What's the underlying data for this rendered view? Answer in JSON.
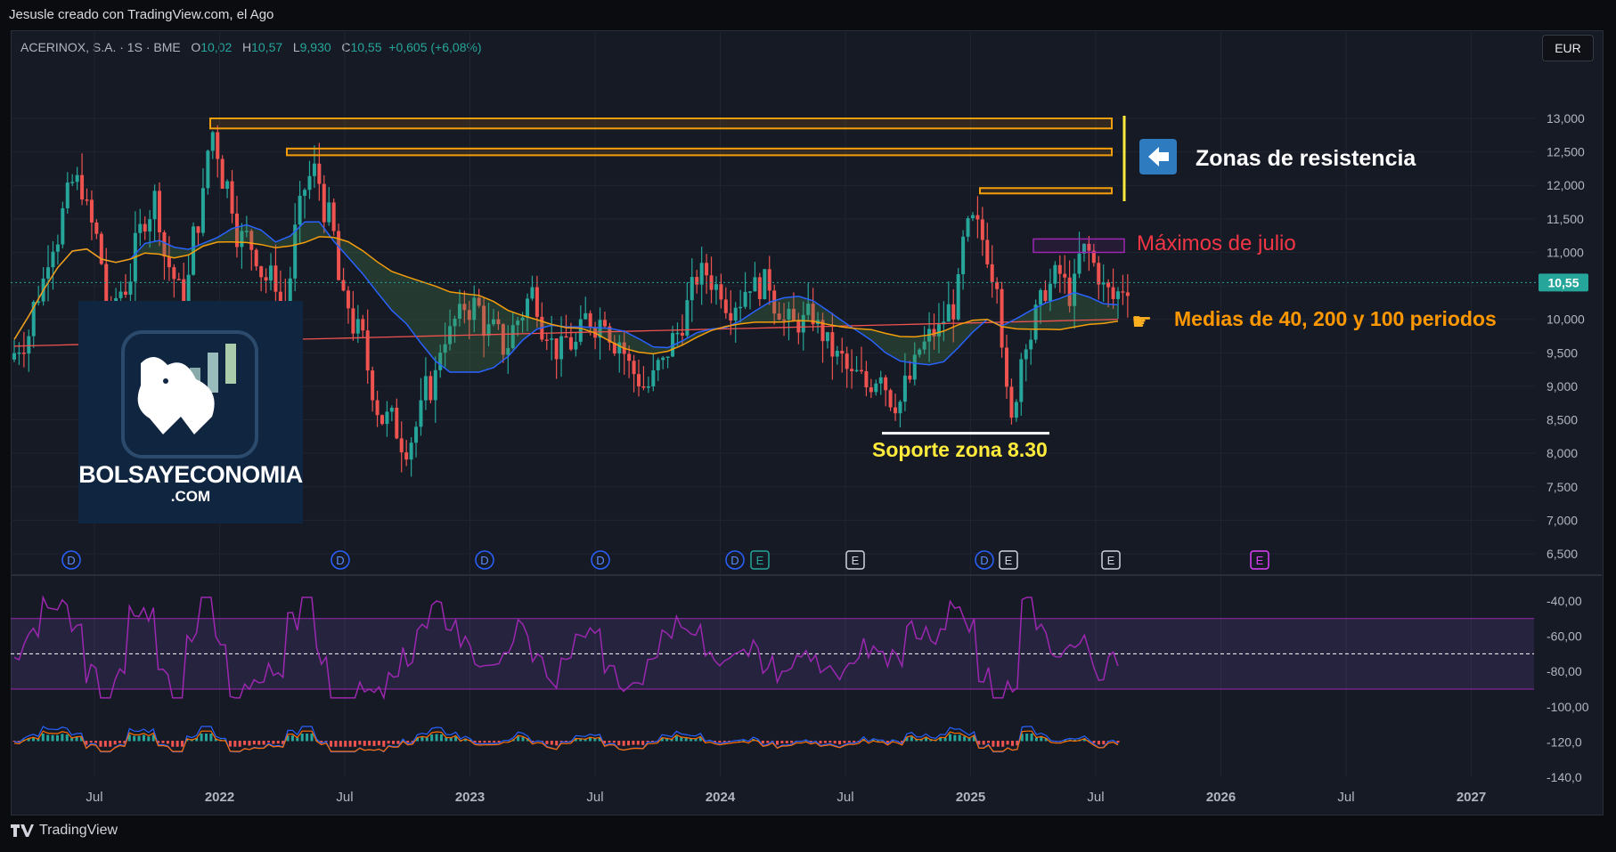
{
  "header": {
    "attribution": "Jesusle creado con TradingView.com, el Ago"
  },
  "legend": {
    "symbol": "ACERINOX, S.A. · 1S · BME",
    "o_label": "O",
    "o": "10,02",
    "h_label": "H",
    "h": "10,57",
    "l_label": "L",
    "l": "9,930",
    "c_label": "C",
    "c": "10,55",
    "change": "+0,605 (+6,08%)"
  },
  "currency_button": "EUR",
  "price_tag": "10,55",
  "footer": {
    "brand": "TradingView"
  },
  "logo": {
    "line1": "BOLSAYECONOMIA",
    "line2": ".COM"
  },
  "annotations": {
    "resistance": "Zonas de resistencia",
    "july_highs": "Máximos de julio",
    "averages": "Medias de 40, 200 y 100 periodos",
    "support": "Soporte zona 8.30"
  },
  "colors": {
    "up": "#26a69a",
    "down": "#ef5350",
    "rsi": "#9c27b0",
    "ma40": "#2962ff",
    "ma100": "#f59e0b",
    "ma200": "#ef5350",
    "resistance": "#f59e0b",
    "support": "#ffffff",
    "annotation_red": "#f23645",
    "annotation_orange": "#ff9800",
    "annotation_yellow": "#ffeb3b"
  },
  "chart_data": [
    {
      "type": "candlestick",
      "title": "ACERINOX, S.A. · 1S · BME",
      "unit": "EUR",
      "y_ticks": [
        "13,000",
        "12,500",
        "12,000",
        "11,500",
        "11,000",
        "10,500",
        "10,000",
        "9,500",
        "9,000",
        "8,500",
        "8,000",
        "7,500",
        "7,000",
        "6,500"
      ],
      "ylim": [
        6.5,
        13.0
      ],
      "x_ticks": [
        "Jul",
        "2022",
        "Jul",
        "2023",
        "Jul",
        "2024",
        "Jul",
        "2025",
        "Jul",
        "2026",
        "Jul",
        "2027"
      ],
      "last_close": 10.55,
      "close_series_approx": [
        9.7,
        10.4,
        11.2,
        11.8,
        12.0,
        11.2,
        10.0,
        10.5,
        11.3,
        11.8,
        10.8,
        10.3,
        11.5,
        12.8,
        12.0,
        11.2,
        11.0,
        10.6,
        10.2,
        11.6,
        12.2,
        11.5,
        10.2,
        9.8,
        9.0,
        8.5,
        8.2,
        8.4,
        9.0,
        9.8,
        10.0,
        10.2,
        9.8,
        9.6,
        10.0,
        10.4,
        9.9,
        9.5,
        9.6,
        10.0,
        10.1,
        9.7,
        9.2,
        9.0,
        9.3,
        9.8,
        10.4,
        10.7,
        10.5,
        10.3,
        10.6,
        10.5,
        10.2,
        9.9,
        10.0,
        9.8,
        9.4,
        9.1,
        9.0,
        9.3,
        8.8,
        9.1,
        9.6,
        9.8,
        10.2,
        11.3,
        11.2,
        10.7,
        8.4,
        9.8,
        10.2,
        10.6,
        10.4,
        11.0,
        10.7,
        10.3,
        10.55
      ],
      "moving_averages": [
        {
          "name": "MA 40",
          "color": "#2962ff"
        },
        {
          "name": "MA 200",
          "color": "#ef5350"
        },
        {
          "name": "MA 100",
          "color": "#f59e0b"
        }
      ],
      "resistance_zones": [
        [
          12.85,
          13.0
        ],
        [
          12.45,
          12.55
        ],
        [
          11.88,
          11.96
        ]
      ],
      "july_highs_box": [
        11.0,
        11.2
      ],
      "support": 8.3,
      "event_markers": [
        "D",
        "D",
        "D",
        "D",
        "D",
        "E",
        "E",
        "D",
        "E",
        "E",
        "E"
      ]
    },
    {
      "type": "line",
      "name": "RSI",
      "y_ticks": [
        "-40,00",
        "-60,00",
        "-80,00",
        "-100,00",
        "-120,0",
        "-140,0"
      ],
      "band": [
        -90,
        -50
      ],
      "mid": -70
    },
    {
      "type": "bar",
      "name": "MACD"
    }
  ]
}
